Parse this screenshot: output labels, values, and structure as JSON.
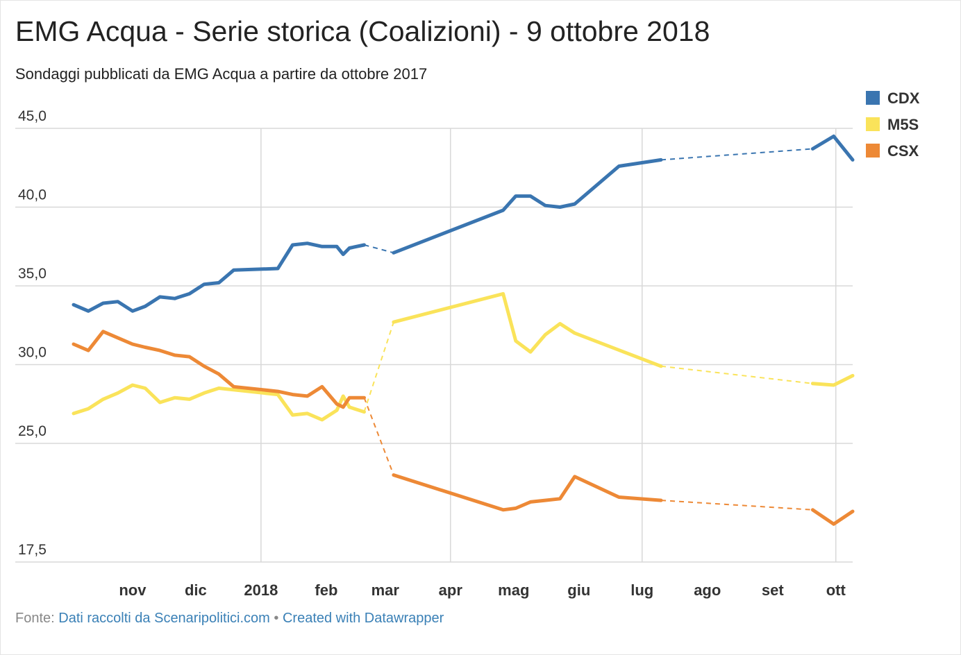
{
  "title": "EMG Acqua - Serie storica (Coalizioni) - 9 ottobre 2018",
  "subtitle": "Sondaggi pubblicati da EMG Acqua a partire da ottobre 2017",
  "footer": {
    "source_label": "Fonte:",
    "source_link": "Dati raccolti da Scenaripolitici.com",
    "separator": "•",
    "credit_link": "Created with Datawrapper"
  },
  "chart_data": {
    "type": "line",
    "grid": true,
    "legend_position": "top-right",
    "ylim": [
      17.5,
      45.0
    ],
    "yticks": [
      {
        "value": 45.0,
        "label": "45,0"
      },
      {
        "value": 40.0,
        "label": "40,0"
      },
      {
        "value": 35.0,
        "label": "35,0"
      },
      {
        "value": 30.0,
        "label": "30,0"
      },
      {
        "value": 25.0,
        "label": "25,0"
      },
      {
        "value": 17.5,
        "label": "17,5"
      }
    ],
    "xlim": [
      "2017-10-04",
      "2018-10-09"
    ],
    "xticks": [
      {
        "date": "2017-11-01",
        "label": "nov"
      },
      {
        "date": "2017-12-01",
        "label": "dic"
      },
      {
        "date": "2018-01-01",
        "label": "2018"
      },
      {
        "date": "2018-02-01",
        "label": "feb"
      },
      {
        "date": "2018-03-01",
        "label": "mar"
      },
      {
        "date": "2018-04-01",
        "label": "apr"
      },
      {
        "date": "2018-05-01",
        "label": "mag"
      },
      {
        "date": "2018-06-01",
        "label": "giu"
      },
      {
        "date": "2018-07-01",
        "label": "lug"
      },
      {
        "date": "2018-08-01",
        "label": "ago"
      },
      {
        "date": "2018-09-01",
        "label": "set"
      },
      {
        "date": "2018-10-01",
        "label": "ott"
      }
    ],
    "vertical_gridlines": [
      "2018-01-01",
      "2018-04-01",
      "2018-07-01",
      "2018-10-01"
    ],
    "dashed_gaps": [
      [
        "2018-02-19",
        "2018-03-05"
      ],
      [
        "2018-07-10",
        "2018-09-20"
      ]
    ],
    "series": [
      {
        "name": "CDX",
        "color": "#3a75b0",
        "points": [
          [
            "2017-10-04",
            33.8
          ],
          [
            "2017-10-11",
            33.4
          ],
          [
            "2017-10-18",
            33.9
          ],
          [
            "2017-10-25",
            34.0
          ],
          [
            "2017-11-01",
            33.4
          ],
          [
            "2017-11-07",
            33.7
          ],
          [
            "2017-11-14",
            34.3
          ],
          [
            "2017-11-21",
            34.2
          ],
          [
            "2017-11-28",
            34.5
          ],
          [
            "2017-12-05",
            35.1
          ],
          [
            "2017-12-12",
            35.2
          ],
          [
            "2017-12-19",
            36.0
          ],
          [
            "2018-01-09",
            36.1
          ],
          [
            "2018-01-16",
            37.6
          ],
          [
            "2018-01-23",
            37.7
          ],
          [
            "2018-01-30",
            37.5
          ],
          [
            "2018-02-06",
            37.5
          ],
          [
            "2018-02-09",
            37.0
          ],
          [
            "2018-02-12",
            37.4
          ],
          [
            "2018-02-19",
            37.6
          ],
          [
            "2018-03-05",
            37.1
          ],
          [
            "2018-04-26",
            39.8
          ],
          [
            "2018-05-02",
            40.7
          ],
          [
            "2018-05-09",
            40.7
          ],
          [
            "2018-05-16",
            40.1
          ],
          [
            "2018-05-23",
            40.0
          ],
          [
            "2018-05-30",
            40.2
          ],
          [
            "2018-06-20",
            42.6
          ],
          [
            "2018-07-10",
            43.0
          ],
          [
            "2018-09-20",
            43.7
          ],
          [
            "2018-09-30",
            44.5
          ],
          [
            "2018-10-09",
            43.0
          ]
        ]
      },
      {
        "name": "M5S",
        "color": "#fae35a",
        "points": [
          [
            "2017-10-04",
            26.9
          ],
          [
            "2017-10-11",
            27.2
          ],
          [
            "2017-10-18",
            27.8
          ],
          [
            "2017-10-25",
            28.2
          ],
          [
            "2017-11-01",
            28.7
          ],
          [
            "2017-11-07",
            28.5
          ],
          [
            "2017-11-14",
            27.6
          ],
          [
            "2017-11-21",
            27.9
          ],
          [
            "2017-11-28",
            27.8
          ],
          [
            "2017-12-05",
            28.2
          ],
          [
            "2017-12-12",
            28.5
          ],
          [
            "2018-01-09",
            28.1
          ],
          [
            "2018-01-16",
            26.8
          ],
          [
            "2018-01-23",
            26.9
          ],
          [
            "2018-01-30",
            26.5
          ],
          [
            "2018-02-06",
            27.1
          ],
          [
            "2018-02-09",
            28.0
          ],
          [
            "2018-02-12",
            27.3
          ],
          [
            "2018-02-19",
            27.0
          ],
          [
            "2018-03-05",
            32.7
          ],
          [
            "2018-04-26",
            34.5
          ],
          [
            "2018-05-02",
            31.5
          ],
          [
            "2018-05-09",
            30.8
          ],
          [
            "2018-05-16",
            31.9
          ],
          [
            "2018-05-23",
            32.6
          ],
          [
            "2018-05-30",
            32.0
          ],
          [
            "2018-07-10",
            29.9
          ],
          [
            "2018-09-20",
            28.8
          ],
          [
            "2018-09-30",
            28.7
          ],
          [
            "2018-10-09",
            29.3
          ]
        ]
      },
      {
        "name": "CSX",
        "color": "#ed8936",
        "points": [
          [
            "2017-10-04",
            31.3
          ],
          [
            "2017-10-11",
            30.9
          ],
          [
            "2017-10-18",
            32.1
          ],
          [
            "2017-10-25",
            31.7
          ],
          [
            "2017-11-01",
            31.3
          ],
          [
            "2017-11-07",
            31.1
          ],
          [
            "2017-11-14",
            30.9
          ],
          [
            "2017-11-21",
            30.6
          ],
          [
            "2017-11-28",
            30.5
          ],
          [
            "2017-12-05",
            29.9
          ],
          [
            "2017-12-12",
            29.4
          ],
          [
            "2017-12-19",
            28.6
          ],
          [
            "2018-01-09",
            28.3
          ],
          [
            "2018-01-16",
            28.1
          ],
          [
            "2018-01-23",
            28.0
          ],
          [
            "2018-01-30",
            28.6
          ],
          [
            "2018-02-06",
            27.5
          ],
          [
            "2018-02-09",
            27.3
          ],
          [
            "2018-02-12",
            27.9
          ],
          [
            "2018-02-19",
            27.9
          ],
          [
            "2018-03-05",
            23.0
          ],
          [
            "2018-04-26",
            20.8
          ],
          [
            "2018-05-02",
            20.9
          ],
          [
            "2018-05-09",
            21.3
          ],
          [
            "2018-05-16",
            21.4
          ],
          [
            "2018-05-23",
            21.5
          ],
          [
            "2018-05-30",
            22.9
          ],
          [
            "2018-06-20",
            21.6
          ],
          [
            "2018-07-10",
            21.4
          ],
          [
            "2018-09-20",
            20.8
          ],
          [
            "2018-09-30",
            19.9
          ],
          [
            "2018-10-09",
            20.7
          ]
        ]
      }
    ]
  }
}
